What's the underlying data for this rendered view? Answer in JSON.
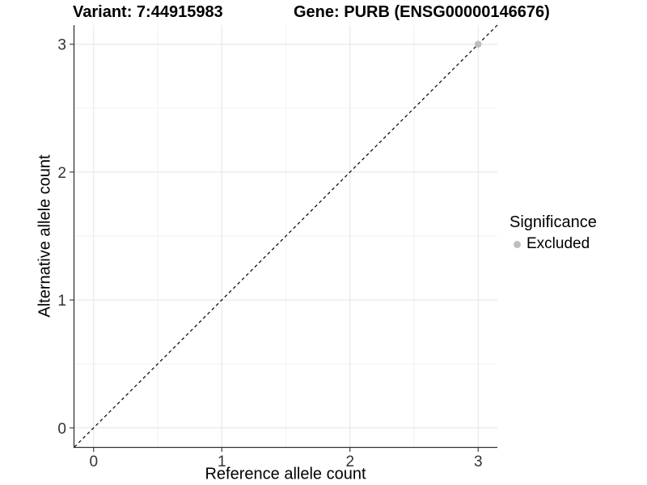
{
  "header": {
    "variant_title": "Variant: 7:44915983",
    "gene_title": "Gene: PURB (ENSG00000146676)"
  },
  "chart_data": {
    "type": "scatter",
    "xlabel": "Reference allele count",
    "ylabel": "Alternative allele count",
    "xlim": [
      -0.15,
      3.15
    ],
    "ylim": [
      -0.15,
      3.15
    ],
    "x_ticks": [
      0,
      1,
      2,
      3
    ],
    "y_ticks": [
      0,
      1,
      2,
      3
    ],
    "x_minor_ticks": [
      0.5,
      1.5,
      2.5
    ],
    "y_minor_ticks": [
      0.5,
      1.5,
      2.5
    ],
    "grid": true,
    "legend_position": "right",
    "series": [
      {
        "name": "Excluded",
        "color": "#bebebe",
        "points": [
          {
            "x": 3,
            "y": 3
          }
        ]
      }
    ],
    "reference_line": {
      "slope": 1,
      "intercept": 0,
      "style": "dashed",
      "color": "#000000"
    }
  },
  "legend": {
    "title": "Significance",
    "items": [
      {
        "label": "Excluded",
        "color": "#bebebe"
      }
    ]
  },
  "colors": {
    "grid_major": "#e4e4e4",
    "grid_minor": "#f2f2f2",
    "axis_line": "#333333",
    "tick_label": "#333333",
    "background": "#ffffff"
  }
}
